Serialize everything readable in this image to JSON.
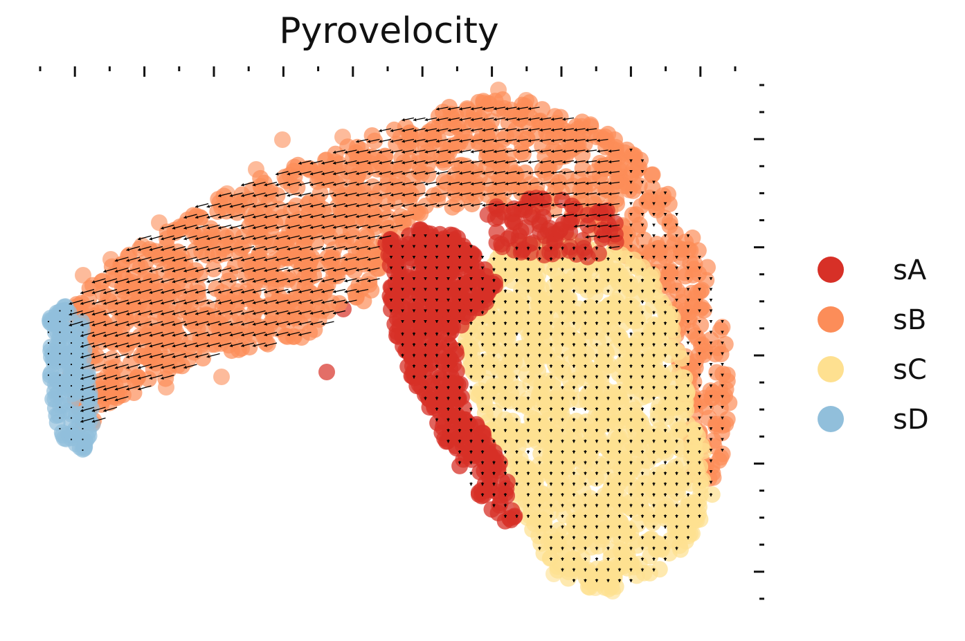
{
  "chart_data": {
    "type": "scatter",
    "title": "Pyrovelocity",
    "xlabel": "",
    "ylabel": "",
    "grid": false,
    "legend_position": "right",
    "overlay": "velocity-arrows",
    "legend": [
      {
        "name": "sA",
        "color": "#d73027"
      },
      {
        "name": "sB",
        "color": "#fc8d59"
      },
      {
        "name": "sC",
        "color": "#fee090"
      },
      {
        "name": "sD",
        "color": "#91bfdb"
      }
    ]
  }
}
